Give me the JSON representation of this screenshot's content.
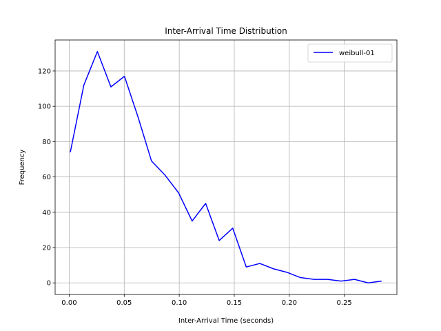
{
  "chart_data": {
    "type": "line",
    "title": "Inter-Arrival Time Distribution",
    "xlabel": "Inter-Arrival Time (seconds)",
    "ylabel": "Frequency",
    "xlim": [
      -0.0128,
      0.2978
    ],
    "ylim": [
      -6.55,
      137.55
    ],
    "xticks": [
      0.0,
      0.05,
      0.1,
      0.15,
      0.2,
      0.25
    ],
    "xtick_labels": [
      "0.00",
      "0.05",
      "0.10",
      "0.15",
      "0.20",
      "0.25"
    ],
    "yticks": [
      0,
      20,
      40,
      60,
      80,
      100,
      120
    ],
    "ytick_labels": [
      "0",
      "20",
      "40",
      "60",
      "80",
      "100",
      "120"
    ],
    "grid": true,
    "legend_position": "top-right",
    "series": [
      {
        "name": "weibull-01",
        "color": "#0000ff",
        "x": [
          0.001,
          0.0133,
          0.0256,
          0.0379,
          0.0502,
          0.0625,
          0.0748,
          0.0871,
          0.0994,
          0.1117,
          0.124,
          0.1363,
          0.1486,
          0.1609,
          0.1732,
          0.1855,
          0.1978,
          0.2101,
          0.2224,
          0.2347,
          0.247,
          0.2593,
          0.2716,
          0.2839
        ],
        "y": [
          74,
          112,
          131,
          111,
          117,
          94,
          69,
          61,
          51,
          35,
          45,
          24,
          31,
          9,
          11,
          8,
          6,
          3,
          2,
          2,
          1,
          2,
          0,
          1
        ]
      }
    ]
  }
}
